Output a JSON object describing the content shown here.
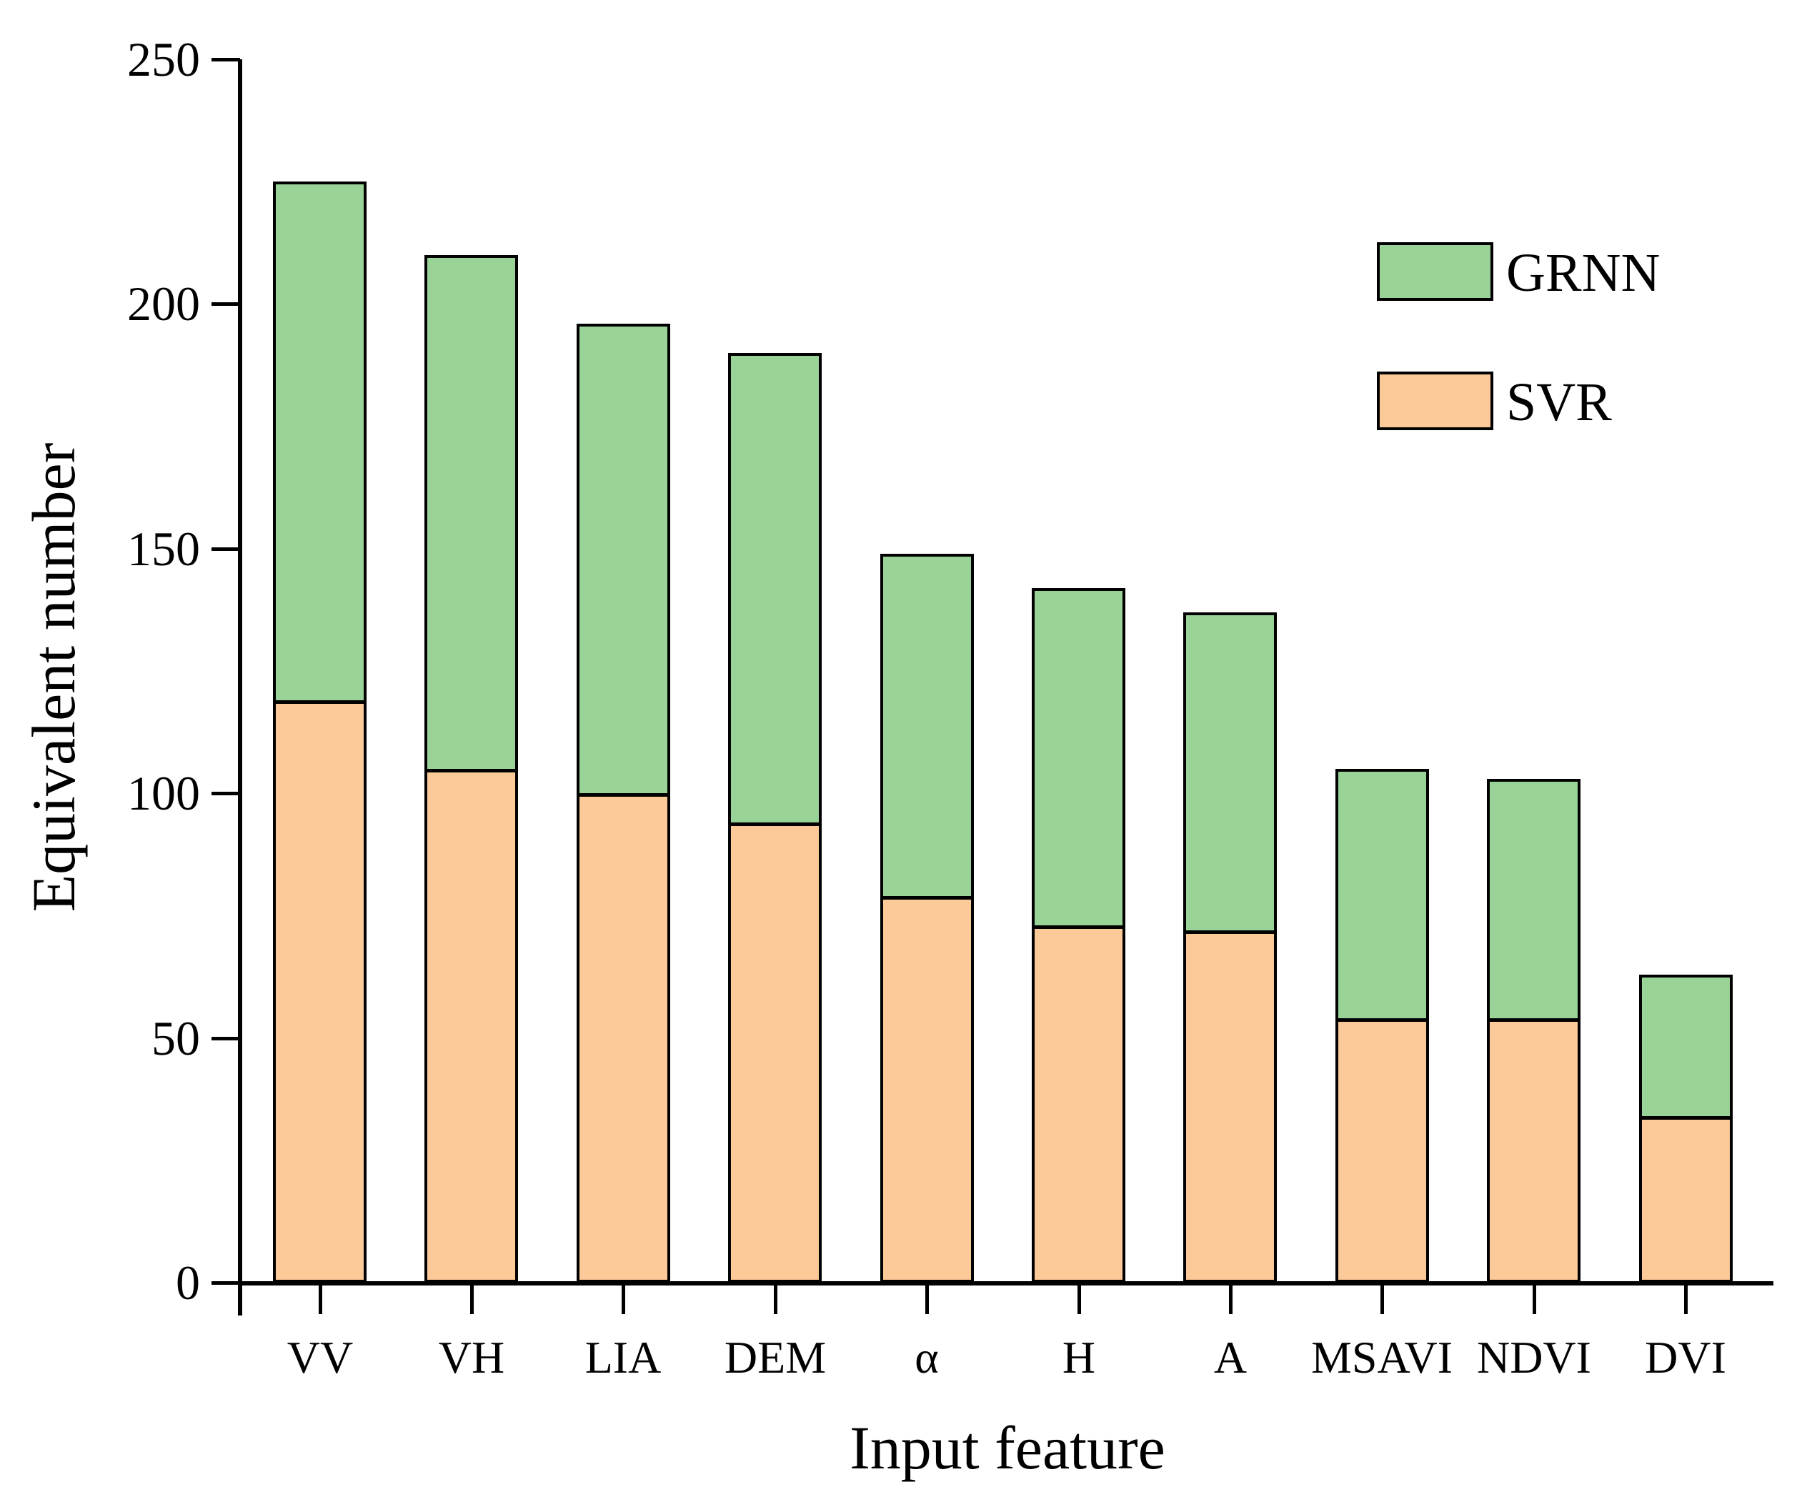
{
  "figure": {
    "background": "#ffffff",
    "text_color": "#000000",
    "axis_color": "#000000"
  },
  "chart_data": {
    "type": "bar",
    "stacked": true,
    "title": "",
    "xlabel": "Input feature",
    "ylabel": "Equivalent number",
    "categories": [
      "VV",
      "VH",
      "LIA",
      "DEM",
      "α",
      "H",
      "A",
      "MSAVI",
      "NDVI",
      "DVI"
    ],
    "series": [
      {
        "name": "SVR",
        "color": "#fcc998",
        "values": [
          119,
          105,
          100,
          94,
          79,
          73,
          72,
          54,
          54,
          34
        ]
      },
      {
        "name": "GRNN",
        "color": "#9ad398",
        "values": [
          106,
          105,
          96,
          96,
          70,
          69,
          65,
          51,
          49,
          29
        ]
      }
    ],
    "totals": [
      225,
      210,
      196,
      190,
      149,
      142,
      137,
      105,
      103,
      63
    ],
    "ylim": [
      0,
      250
    ],
    "yticks": [
      0,
      50,
      100,
      150,
      200,
      250
    ],
    "grid": false,
    "legend_position": "upper-right"
  },
  "legend": {
    "items": [
      {
        "label": "GRNN",
        "color": "#9ad398"
      },
      {
        "label": "SVR",
        "color": "#fcc998"
      }
    ]
  }
}
